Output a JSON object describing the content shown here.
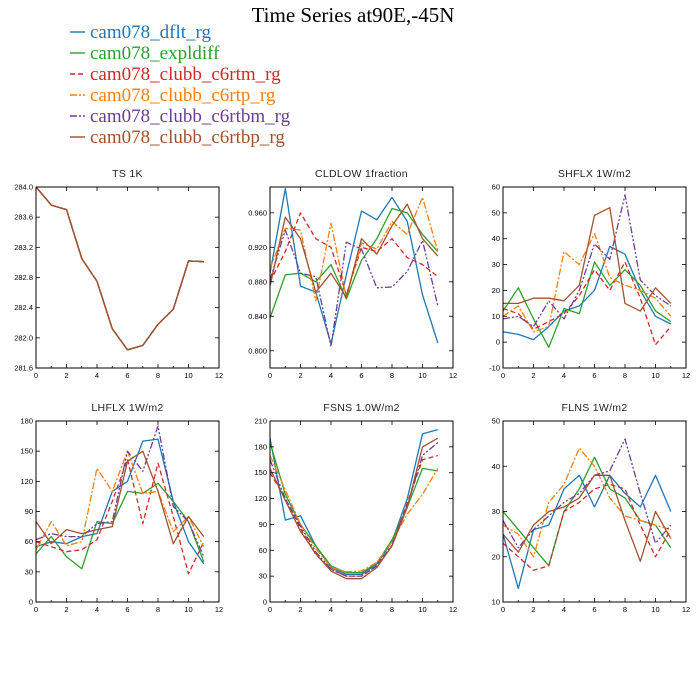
{
  "title": "Time Series at90E,-45N",
  "legend": [
    {
      "name": "cam078_dflt_rg",
      "color": "#1f77b4",
      "dash": ""
    },
    {
      "name": "cam078_expldiff",
      "color": "#2ca02c",
      "dash": ""
    },
    {
      "name": "cam078_clubb_c6rtm_rg",
      "color": "#d62728",
      "dash": "5,3"
    },
    {
      "name": "cam078_clubb_c6rtp_rg",
      "color": "#ff7f0e",
      "dash": "7,2,2,2"
    },
    {
      "name": "cam078_clubb_c6rtbm_rg",
      "color": "#6a3d9a",
      "dash": "7,2,2,2,2,2"
    },
    {
      "name": "cam078_clubb_c6rtbp_rg",
      "color": "#a0522d",
      "dash": ""
    }
  ],
  "chart_data": [
    {
      "type": "line",
      "title": "TS   1K",
      "xlim": [
        0,
        12
      ],
      "ylim": [
        281.6,
        284.0
      ],
      "xticks": [
        0,
        2,
        4,
        6,
        8,
        10,
        12
      ],
      "yticks": [
        "281.6",
        "282.0",
        "282.4",
        "282.8",
        "283.2",
        "283.6",
        "284.0"
      ],
      "x": [
        0,
        1,
        2,
        3,
        4,
        5,
        6,
        7,
        8,
        9,
        10,
        11
      ],
      "series": [
        {
          "name": "cam078_dflt_rg",
          "values": [
            284.0,
            283.76,
            283.7,
            283.05,
            282.75,
            282.12,
            281.84,
            281.9,
            282.18,
            282.38,
            283.02,
            283.01
          ]
        },
        {
          "name": "cam078_expldiff",
          "values": [
            284.0,
            283.76,
            283.7,
            283.05,
            282.75,
            282.12,
            281.84,
            281.9,
            282.18,
            282.38,
            283.02,
            283.01
          ]
        },
        {
          "name": "cam078_clubb_c6rtm_rg",
          "values": [
            284.0,
            283.76,
            283.7,
            283.05,
            282.75,
            282.12,
            281.84,
            281.9,
            282.18,
            282.38,
            283.02,
            283.01
          ]
        },
        {
          "name": "cam078_clubb_c6rtp_rg",
          "values": [
            284.0,
            283.76,
            283.7,
            283.05,
            282.75,
            282.12,
            281.84,
            281.9,
            282.18,
            282.38,
            283.02,
            283.01
          ]
        },
        {
          "name": "cam078_clubb_c6rtbm_rg",
          "values": [
            284.0,
            283.76,
            283.7,
            283.05,
            282.75,
            282.12,
            281.84,
            281.9,
            282.18,
            282.38,
            283.02,
            283.01
          ]
        },
        {
          "name": "cam078_clubb_c6rtbp_rg",
          "values": [
            284.0,
            283.76,
            283.7,
            283.05,
            282.75,
            282.12,
            281.84,
            281.9,
            282.18,
            282.38,
            283.02,
            283.01
          ]
        }
      ]
    },
    {
      "type": "line",
      "title": "CLDLOW   1fraction",
      "xlim": [
        0,
        12
      ],
      "ylim": [
        0.78,
        0.99
      ],
      "xticks": [
        0,
        2,
        4,
        6,
        8,
        10,
        12
      ],
      "yticks": [
        "0.800",
        "0.840",
        "0.880",
        "0.920",
        "0.960"
      ],
      "x": [
        0,
        1,
        2,
        3,
        4,
        5,
        6,
        7,
        8,
        9,
        10,
        11
      ],
      "series": [
        {
          "name": "cam078_dflt_rg",
          "values": [
            0.89,
            0.988,
            0.875,
            0.868,
            0.808,
            0.888,
            0.962,
            0.952,
            0.978,
            0.95,
            0.865,
            0.809
          ]
        },
        {
          "name": "cam078_expldiff",
          "values": [
            0.838,
            0.888,
            0.89,
            0.88,
            0.9,
            0.86,
            0.905,
            0.93,
            0.965,
            0.96,
            0.935,
            0.915
          ]
        },
        {
          "name": "cam078_clubb_c6rtm_rg",
          "values": [
            0.88,
            0.915,
            0.96,
            0.93,
            0.92,
            0.865,
            0.92,
            0.915,
            0.93,
            0.908,
            0.9,
            0.886
          ]
        },
        {
          "name": "cam078_clubb_c6rtp_rg",
          "values": [
            0.895,
            0.942,
            0.94,
            0.858,
            0.948,
            0.862,
            0.925,
            0.918,
            0.95,
            0.935,
            0.978,
            0.915
          ]
        },
        {
          "name": "cam078_clubb_c6rtbm_rg",
          "values": [
            0.882,
            0.94,
            0.89,
            0.886,
            0.805,
            0.926,
            0.918,
            0.873,
            0.874,
            0.892,
            0.928,
            0.852
          ]
        },
        {
          "name": "cam078_clubb_c6rtbp_rg",
          "values": [
            0.875,
            0.955,
            0.93,
            0.868,
            0.89,
            0.862,
            0.93,
            0.912,
            0.945,
            0.97,
            0.93,
            0.91
          ]
        }
      ]
    },
    {
      "type": "line",
      "title": "SHFLX   1W/m2",
      "xlim": [
        0,
        12
      ],
      "ylim": [
        -10,
        60
      ],
      "xticks": [
        0,
        2,
        4,
        6,
        8,
        10,
        12
      ],
      "yticks": [
        "-10",
        "0",
        "10",
        "20",
        "30",
        "40",
        "50",
        "60"
      ],
      "x": [
        0,
        1,
        2,
        3,
        4,
        5,
        6,
        7,
        8,
        9,
        10,
        11
      ],
      "series": [
        {
          "name": "cam078_dflt_rg",
          "values": [
            4,
            3,
            1,
            6,
            12,
            14,
            20,
            37,
            34,
            20,
            10,
            7
          ]
        },
        {
          "name": "cam078_expldiff",
          "values": [
            12,
            21,
            9,
            -2,
            13,
            11,
            31,
            22,
            28,
            22,
            12,
            8
          ]
        },
        {
          "name": "cam078_clubb_c6rtm_rg",
          "values": [
            13,
            11,
            5,
            8,
            11,
            18,
            28,
            20,
            31,
            17,
            -1,
            6
          ]
        },
        {
          "name": "cam078_clubb_c6rtp_rg",
          "values": [
            10,
            14,
            4,
            6,
            35,
            30,
            42,
            25,
            22,
            20,
            17,
            10
          ]
        },
        {
          "name": "cam078_clubb_c6rtbm_rg",
          "values": [
            9,
            10,
            6,
            16,
            9,
            20,
            38,
            32,
            57,
            24,
            18,
            14
          ]
        },
        {
          "name": "cam078_clubb_c6rtbp_rg",
          "values": [
            15,
            15,
            17,
            17,
            16,
            22,
            49,
            52,
            15,
            12,
            21,
            15
          ]
        }
      ]
    },
    {
      "type": "line",
      "title": "LHFLX   1W/m2",
      "xlim": [
        0,
        12
      ],
      "ylim": [
        0,
        180
      ],
      "xticks": [
        0,
        2,
        4,
        6,
        8,
        10,
        12
      ],
      "yticks": [
        "0",
        "30",
        "60",
        "90",
        "120",
        "150",
        "180"
      ],
      "x": [
        0,
        1,
        2,
        3,
        4,
        5,
        6,
        7,
        8,
        9,
        10,
        11
      ],
      "series": [
        {
          "name": "cam078_dflt_rg",
          "values": [
            55,
            60,
            58,
            65,
            68,
            110,
            120,
            160,
            162,
            100,
            60,
            38
          ]
        },
        {
          "name": "cam078_expldiff",
          "values": [
            48,
            65,
            45,
            33,
            80,
            78,
            110,
            108,
            118,
            100,
            80,
            40
          ]
        },
        {
          "name": "cam078_clubb_c6rtm_rg",
          "values": [
            60,
            55,
            50,
            52,
            62,
            100,
            142,
            78,
            138,
            85,
            28,
            60
          ]
        },
        {
          "name": "cam078_clubb_c6rtp_rg",
          "values": [
            52,
            80,
            56,
            60,
            133,
            110,
            150,
            108,
            110,
            70,
            85,
            55
          ]
        },
        {
          "name": "cam078_clubb_c6rtbm_rg",
          "values": [
            62,
            68,
            65,
            65,
            78,
            80,
            150,
            130,
            175,
            95,
            80,
            45
          ]
        },
        {
          "name": "cam078_clubb_c6rtbp_rg",
          "values": [
            80,
            58,
            72,
            68,
            72,
            75,
            140,
            150,
            110,
            58,
            85,
            65
          ]
        }
      ]
    },
    {
      "type": "line",
      "title": "FSNS   1.0W/m2",
      "xlim": [
        0,
        12
      ],
      "ylim": [
        0,
        210
      ],
      "xticks": [
        0,
        2,
        4,
        6,
        8,
        10,
        12
      ],
      "yticks": [
        "0",
        "30",
        "60",
        "90",
        "120",
        "150",
        "180",
        "210"
      ],
      "x": [
        0,
        1,
        2,
        3,
        4,
        5,
        6,
        7,
        8,
        9,
        10,
        11
      ],
      "series": [
        {
          "name": "cam078_dflt_rg",
          "values": [
            190,
            95,
            100,
            65,
            40,
            32,
            32,
            44,
            70,
            120,
            195,
            200
          ]
        },
        {
          "name": "cam078_expldiff",
          "values": [
            185,
            125,
            90,
            65,
            42,
            34,
            34,
            45,
            72,
            110,
            155,
            152
          ]
        },
        {
          "name": "cam078_clubb_c6rtm_rg",
          "values": [
            150,
            120,
            85,
            55,
            38,
            30,
            30,
            42,
            65,
            115,
            165,
            170
          ]
        },
        {
          "name": "cam078_clubb_c6rtp_rg",
          "values": [
            170,
            130,
            90,
            62,
            40,
            35,
            36,
            46,
            70,
            102,
            125,
            155
          ]
        },
        {
          "name": "cam078_clubb_c6rtbm_rg",
          "values": [
            165,
            120,
            88,
            58,
            38,
            30,
            30,
            42,
            66,
            112,
            170,
            185
          ]
        },
        {
          "name": "cam078_clubb_c6rtbp_rg",
          "values": [
            155,
            118,
            82,
            56,
            36,
            27,
            27,
            40,
            65,
            110,
            180,
            190
          ]
        }
      ]
    },
    {
      "type": "line",
      "title": "FLNS   1W/m2",
      "xlim": [
        0,
        12
      ],
      "ylim": [
        10,
        50
      ],
      "xticks": [
        0,
        2,
        4,
        6,
        8,
        10,
        12
      ],
      "yticks": [
        "10",
        "20",
        "30",
        "40",
        "50"
      ],
      "x": [
        0,
        1,
        2,
        3,
        4,
        5,
        6,
        7,
        8,
        9,
        10,
        11
      ],
      "series": [
        {
          "name": "cam078_dflt_rg",
          "values": [
            25,
            13,
            26,
            27,
            35,
            38,
            31,
            38,
            34,
            31,
            38,
            30
          ]
        },
        {
          "name": "cam078_expldiff",
          "values": [
            30,
            26,
            22,
            18,
            30,
            35,
            42,
            35,
            33,
            28,
            27,
            22
          ]
        },
        {
          "name": "cam078_clubb_c6rtm_rg",
          "values": [
            23,
            20,
            17,
            18,
            30,
            32,
            35,
            36,
            35,
            27,
            20,
            26
          ]
        },
        {
          "name": "cam078_clubb_c6rtp_rg",
          "values": [
            27,
            25,
            20,
            32,
            36,
            44,
            40,
            33,
            29,
            28,
            27,
            26
          ]
        },
        {
          "name": "cam078_clubb_c6rtbm_rg",
          "values": [
            28,
            22,
            26,
            29,
            32,
            34,
            38,
            39,
            46,
            34,
            23,
            27
          ]
        },
        {
          "name": "cam078_clubb_c6rtbp_rg",
          "values": [
            25,
            21,
            27,
            30,
            31,
            33,
            38,
            38,
            28,
            19,
            30,
            24
          ]
        }
      ]
    }
  ]
}
